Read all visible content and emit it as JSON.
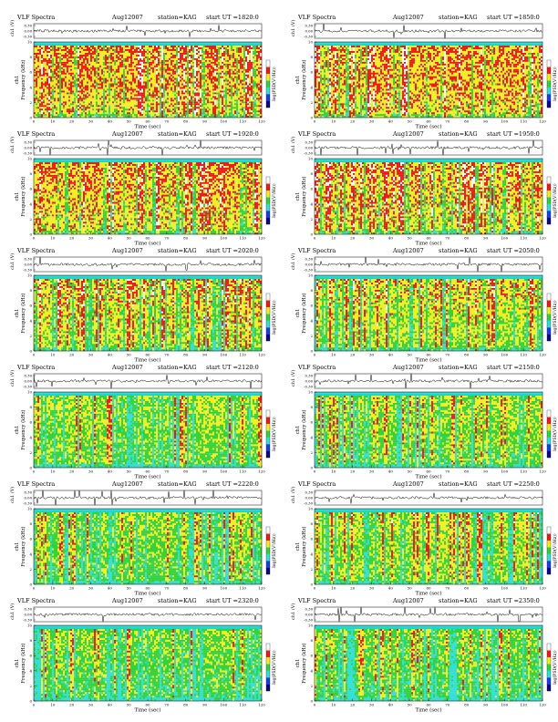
{
  "chart_data": [
    {
      "type": "heatmap",
      "panel_title": "VLF Spectra",
      "date": "Aug12007",
      "station": "station=KAG",
      "start_ut": "start  UT  =1820:0",
      "xlabel": "Time  (sec)",
      "ylabel": "Frequency  (kHz)",
      "top_ylabel": "ch1 (V)",
      "ylabel_prefix": "ch1",
      "colorbar_label": "log(PSD(V²/Hz))",
      "xlim": [
        0,
        120
      ],
      "ylim": [
        0,
        10
      ],
      "xticks": [
        "0",
        "10",
        "20",
        "30",
        "40",
        "50",
        "60",
        "70",
        "80",
        "90",
        "100",
        "110",
        "120"
      ],
      "yticks": [
        "0",
        "2",
        "4",
        "6",
        "8",
        "10"
      ],
      "top_yticks": [
        "0.30",
        "0.00",
        "-0.30"
      ],
      "band_top_khz": 9.5,
      "intensity_level": 0.9
    },
    {
      "type": "heatmap",
      "panel_title": "VLF Spectra",
      "date": "Aug12007",
      "station": "station=KAG",
      "start_ut": "start  UT  =1850:0",
      "xlabel": "Time  (sec)",
      "ylabel": "Frequency  (kHz)",
      "top_ylabel": "ch1 (V)",
      "ylabel_prefix": "ch1",
      "colorbar_label": "log(PSD(V²/Hz))",
      "xlim": [
        0,
        120
      ],
      "ylim": [
        0,
        10
      ],
      "xticks": [
        "0",
        "10",
        "20",
        "30",
        "40",
        "50",
        "60",
        "70",
        "80",
        "90",
        "100",
        "110",
        "120"
      ],
      "yticks": [
        "0",
        "2",
        "4",
        "6",
        "8",
        "10"
      ],
      "top_yticks": [
        "0.30",
        "0.00",
        "-0.30"
      ],
      "band_top_khz": 9.5,
      "intensity_level": 0.88
    },
    {
      "type": "heatmap",
      "panel_title": "VLF Spectra",
      "date": "Aug12007",
      "station": "station=KAG",
      "start_ut": "start  UT  =1920:0",
      "xlabel": "Time  (sec)",
      "ylabel": "Frequency  (kHz)",
      "top_ylabel": "ch1 (V)",
      "ylabel_prefix": "ch1",
      "colorbar_label": "log(PSD(V²/Hz))",
      "xlim": [
        0,
        120
      ],
      "ylim": [
        0,
        10
      ],
      "xticks": [
        "0",
        "10",
        "20",
        "30",
        "40",
        "50",
        "60",
        "70",
        "80",
        "90",
        "100",
        "110",
        "120"
      ],
      "yticks": [
        "0",
        "2",
        "4",
        "6",
        "8",
        "10"
      ],
      "top_yticks": [
        "0.30",
        "0.00",
        "-0.30"
      ],
      "band_top_khz": 9.5,
      "intensity_level": 0.85
    },
    {
      "type": "heatmap",
      "panel_title": "VLF Spectra",
      "date": "Aug12007",
      "station": "station=KAG",
      "start_ut": "start  UT  =1950:0",
      "xlabel": "Time  (sec)",
      "ylabel": "Frequency  (kHz)",
      "top_ylabel": "ch1 (V)",
      "ylabel_prefix": "ch1",
      "colorbar_label": "log(PSD(V²/Hz))",
      "xlim": [
        0,
        120
      ],
      "ylim": [
        0,
        10
      ],
      "xticks": [
        "0",
        "10",
        "20",
        "30",
        "40",
        "50",
        "60",
        "70",
        "80",
        "90",
        "100",
        "110",
        "120"
      ],
      "yticks": [
        "0",
        "2",
        "4",
        "6",
        "8",
        "10"
      ],
      "top_yticks": [
        "0.30",
        "0.00",
        "-0.30"
      ],
      "band_top_khz": 9.5,
      "intensity_level": 0.82
    },
    {
      "type": "heatmap",
      "panel_title": "VLF Spectra",
      "date": "Aug12007",
      "station": "station=KAG",
      "start_ut": "start  UT  =2020:0",
      "xlabel": "Time  (sec)",
      "ylabel": "Frequency  (kHz)",
      "top_ylabel": "ch1 (V)",
      "ylabel_prefix": "ch1",
      "colorbar_label": "log(PSD(V²/Hz))",
      "xlim": [
        0,
        120
      ],
      "ylim": [
        0,
        10
      ],
      "xticks": [
        "0",
        "10",
        "20",
        "30",
        "40",
        "50",
        "60",
        "70",
        "80",
        "90",
        "100",
        "110",
        "120"
      ],
      "yticks": [
        "0",
        "2",
        "4",
        "6",
        "8",
        "10"
      ],
      "top_yticks": [
        "0.30",
        "0.00",
        "-0.30"
      ],
      "band_top_khz": 9.5,
      "intensity_level": 0.72
    },
    {
      "type": "heatmap",
      "panel_title": "VLF Spectra",
      "date": "Aug12007",
      "station": "station=KAG",
      "start_ut": "start  UT  =2050:0",
      "xlabel": "Time  (sec)",
      "ylabel": "Frequency  (kHz)",
      "top_ylabel": "ch1 (V)",
      "ylabel_prefix": "ch1",
      "colorbar_label": "log(PSD(V²/Hz))",
      "xlim": [
        0,
        120
      ],
      "ylim": [
        0,
        10
      ],
      "xticks": [
        "0",
        "10",
        "20",
        "30",
        "40",
        "50",
        "60",
        "70",
        "80",
        "90",
        "100",
        "110",
        "120"
      ],
      "yticks": [
        "0",
        "2",
        "4",
        "6",
        "8",
        "10"
      ],
      "top_yticks": [
        "0.30",
        "0.00",
        "-0.30"
      ],
      "band_top_khz": 9.5,
      "intensity_level": 0.7
    },
    {
      "type": "heatmap",
      "panel_title": "VLF Spectra",
      "date": "Aug12007",
      "station": "station=KAG",
      "start_ut": "start  UT  =2120:0",
      "xlabel": "Time  (sec)",
      "ylabel": "Frequency  (kHz)",
      "top_ylabel": "ch1 (V)",
      "ylabel_prefix": "ch1",
      "colorbar_label": "log(PSD(V²/Hz))",
      "xlim": [
        0,
        120
      ],
      "ylim": [
        0,
        10
      ],
      "xticks": [
        "0",
        "10",
        "20",
        "30",
        "40",
        "50",
        "60",
        "70",
        "80",
        "90",
        "100",
        "110",
        "120"
      ],
      "yticks": [
        "0",
        "2",
        "4",
        "6",
        "8",
        "10"
      ],
      "top_yticks": [
        "0.30",
        "0.00",
        "-0.30"
      ],
      "band_top_khz": 9.5,
      "intensity_level": 0.55
    },
    {
      "type": "heatmap",
      "panel_title": "VLF Spectra",
      "date": "Aug12007",
      "station": "station=KAG",
      "start_ut": "start  UT  =2150:0",
      "xlabel": "Time  (sec)",
      "ylabel": "Frequency  (kHz)",
      "top_ylabel": "ch1 (V)",
      "ylabel_prefix": "ch1",
      "colorbar_label": "log(PSD(V²/Hz))",
      "xlim": [
        0,
        120
      ],
      "ylim": [
        0,
        10
      ],
      "xticks": [
        "0",
        "10",
        "20",
        "30",
        "40",
        "50",
        "60",
        "70",
        "80",
        "90",
        "100",
        "110",
        "120"
      ],
      "yticks": [
        "0",
        "2",
        "4",
        "6",
        "8",
        "10"
      ],
      "top_yticks": [
        "0.30",
        "0.00",
        "-0.30"
      ],
      "band_top_khz": 9.5,
      "intensity_level": 0.52
    },
    {
      "type": "heatmap",
      "panel_title": "VLF Spectra",
      "date": "Aug12007",
      "station": "station=KAG",
      "start_ut": "start  UT  =2220:0",
      "xlabel": "Time  (sec)",
      "ylabel": "Frequency  (kHz)",
      "top_ylabel": "ch1 (V)",
      "ylabel_prefix": "ch1",
      "colorbar_label": "log(PSD(V²/Hz))",
      "xlim": [
        0,
        120
      ],
      "ylim": [
        0,
        10
      ],
      "xticks": [
        "0",
        "10",
        "20",
        "30",
        "40",
        "50",
        "60",
        "70",
        "80",
        "90",
        "100",
        "110",
        "120"
      ],
      "yticks": [
        "0",
        "2",
        "4",
        "6",
        "8",
        "10"
      ],
      "top_yticks": [
        "0.30",
        "0.00",
        "-0.30"
      ],
      "band_top_khz": 9.5,
      "intensity_level": 0.5
    },
    {
      "type": "heatmap",
      "panel_title": "VLF Spectra",
      "date": "Aug12007",
      "station": "station=KAG",
      "start_ut": "start  UT  =2250:0",
      "xlabel": "Time  (sec)",
      "ylabel": "Frequency  (kHz)",
      "top_ylabel": "ch1 (V)",
      "ylabel_prefix": "ch1",
      "colorbar_label": "log(PSD(V²/Hz))",
      "xlim": [
        0,
        120
      ],
      "ylim": [
        0,
        10
      ],
      "xticks": [
        "0",
        "10",
        "20",
        "30",
        "40",
        "50",
        "60",
        "70",
        "80",
        "90",
        "100",
        "110",
        "120"
      ],
      "yticks": [
        "0",
        "2",
        "4",
        "6",
        "8",
        "10"
      ],
      "top_yticks": [
        "0.30",
        "0.00",
        "-0.30"
      ],
      "band_top_khz": 9.5,
      "intensity_level": 0.6
    },
    {
      "type": "heatmap",
      "panel_title": "VLF Spectra",
      "date": "Aug12007",
      "station": "station=KAG",
      "start_ut": "start  UT  =2320:0",
      "xlabel": "Time  (sec)",
      "ylabel": "Frequency  (kHz)",
      "top_ylabel": "ch1 (V)",
      "ylabel_prefix": "ch1",
      "colorbar_label": "log(PSD(V²/Hz))",
      "xlim": [
        0,
        120
      ],
      "ylim": [
        0,
        10
      ],
      "xticks": [
        "0",
        "10",
        "20",
        "30",
        "40",
        "50",
        "60",
        "70",
        "80",
        "90",
        "100",
        "110",
        "120"
      ],
      "yticks": [
        "0",
        "2",
        "4",
        "6",
        "8",
        "10"
      ],
      "top_yticks": [
        "0.30",
        "0.00",
        "-0.30"
      ],
      "band_top_khz": 9.5,
      "intensity_level": 0.45
    },
    {
      "type": "heatmap",
      "panel_title": "VLF Spectra",
      "date": "Aug12007",
      "station": "station=KAG",
      "start_ut": "start  UT  =2350:0",
      "xlabel": "Time  (sec)",
      "ylabel": "Frequency  (kHz)",
      "top_ylabel": "ch1 (V)",
      "ylabel_prefix": "ch1",
      "colorbar_label": "log(PSD(V²/Hz))",
      "xlim": [
        0,
        120
      ],
      "ylim": [
        0,
        10
      ],
      "xticks": [
        "0",
        "10",
        "20",
        "30",
        "40",
        "50",
        "60",
        "70",
        "80",
        "90",
        "100",
        "110",
        "120"
      ],
      "yticks": [
        "0",
        "2",
        "4",
        "6",
        "8",
        "10"
      ],
      "top_yticks": [
        "0.30",
        "0.00",
        "-0.30"
      ],
      "band_top_khz": 9.5,
      "intensity_level": 0.42
    }
  ],
  "colors": {
    "white": "#ffffff",
    "red": "#ee1a1a",
    "yellow": "#f2ee22",
    "green": "#33d23c",
    "cyan": "#33ddd8",
    "blue": "#1a3ee6",
    "navy": "#0a0a80",
    "band_top": "#22d6c6"
  }
}
